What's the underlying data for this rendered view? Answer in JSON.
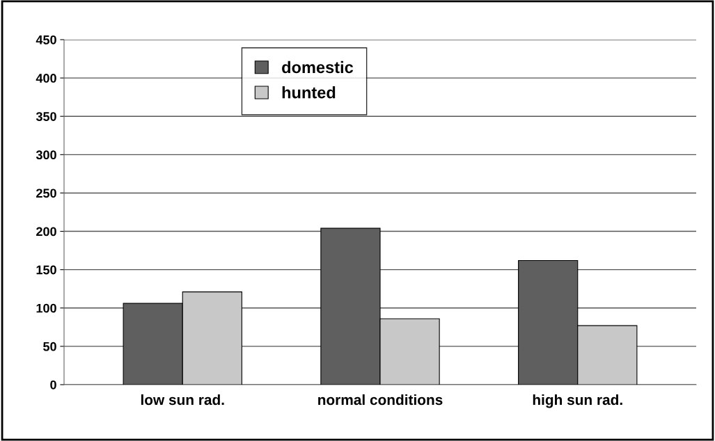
{
  "chart_data": {
    "type": "bar",
    "categories": [
      "low sun rad.",
      "normal conditions",
      "high sun rad."
    ],
    "series": [
      {
        "name": "domestic",
        "color": "#5f5f5f",
        "values": [
          106,
          204,
          162
        ]
      },
      {
        "name": "hunted",
        "color": "#c8c8c8",
        "values": [
          121,
          86,
          77
        ]
      }
    ],
    "ylim": [
      0,
      450
    ],
    "yticks": [
      0,
      50,
      100,
      150,
      200,
      250,
      300,
      350,
      400,
      450
    ],
    "grid": "y",
    "legend": "top"
  }
}
